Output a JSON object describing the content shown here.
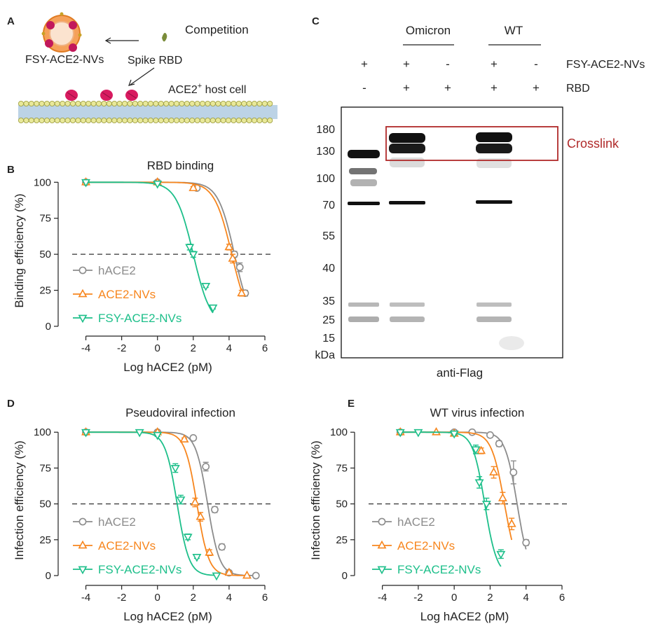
{
  "panel_labels": {
    "a": "A",
    "b": "B",
    "c": "C",
    "d": "D",
    "e": "E"
  },
  "schematic": {
    "title": "Competition",
    "np_label": "FSY-ACE2-NVs",
    "rbd_label": "Spike RBD",
    "host_label": "ACE2",
    "host_sup": "+",
    "host_suffix": " host cell"
  },
  "blot": {
    "groups": [
      "Omicron",
      "WT"
    ],
    "rows": [
      {
        "label": "FSY-ACE2-NVs",
        "signs": [
          "+",
          "+",
          "-",
          "+",
          "-"
        ]
      },
      {
        "label": "RBD",
        "signs": [
          "-",
          "+",
          "+",
          "+",
          "+"
        ]
      }
    ],
    "markers": [
      "180",
      "130",
      "100",
      "70",
      "55",
      "40",
      "35",
      "25",
      "15"
    ],
    "unit": "kDa",
    "crosslink_label": "Crosslink",
    "antibody": "anti-Flag"
  },
  "colors": {
    "hace2": "#8c8c8c",
    "acenv": "#f7861e",
    "fsy": "#1dbf8a",
    "crosslink": "#b02a2a"
  },
  "chart_data": [
    {
      "id": "B",
      "type": "line",
      "title": "RBD binding",
      "xlabel": "Log hACE2 (pM)",
      "ylabel": "Binding efficiency (%)",
      "xlim": [
        -5,
        6
      ],
      "ylim": [
        0,
        105
      ],
      "xticks": [
        -4,
        -2,
        0,
        2,
        4,
        6
      ],
      "yticks": [
        0,
        25,
        50,
        75,
        100
      ],
      "ref_line_y": 50,
      "legend": "bottom-left",
      "series": [
        {
          "name": "hACE2",
          "color": "#8c8c8c",
          "marker": "circle",
          "ic50": 4.3,
          "hill": 0.95,
          "x": [
            -4,
            0,
            2.2,
            4.3,
            4.6,
            4.9
          ],
          "y": [
            100,
            100,
            96,
            50,
            41,
            23
          ],
          "err": [
            0,
            0,
            1,
            2,
            3,
            2
          ]
        },
        {
          "name": "ACE2-NVs",
          "color": "#f7861e",
          "marker": "triangle-up",
          "ic50": 4.15,
          "hill": 0.9,
          "x": [
            -4,
            0,
            2,
            4,
            4.2,
            4.7
          ],
          "y": [
            100,
            100,
            96,
            55,
            47,
            23
          ],
          "err": [
            0,
            0,
            1,
            2,
            3,
            2
          ]
        },
        {
          "name": "FSY-ACE2-NVs",
          "color": "#1dbf8a",
          "marker": "triangle-down",
          "ic50": 2.0,
          "hill": 0.9,
          "x": [
            -4,
            0,
            1.8,
            2.0,
            2.7,
            3.1
          ],
          "y": [
            100,
            99,
            55,
            50,
            28,
            13
          ],
          "err": [
            0,
            0,
            2,
            2,
            1,
            1
          ]
        }
      ]
    },
    {
      "id": "D",
      "type": "line",
      "title": "Pseudoviral infection",
      "xlabel": "Log hACE2 (pM)",
      "ylabel": "Infection efficiency (%)",
      "xlim": [
        -5,
        6
      ],
      "ylim": [
        0,
        105
      ],
      "xticks": [
        -4,
        -2,
        0,
        2,
        4,
        6
      ],
      "yticks": [
        0,
        25,
        50,
        75,
        100
      ],
      "ref_line_y": 50,
      "legend": "bottom-left",
      "series": [
        {
          "name": "hACE2",
          "color": "#8c8c8c",
          "marker": "circle",
          "ic50": 2.8,
          "hill": 1.3,
          "x": [
            -4,
            0,
            2,
            2.7,
            3.2,
            3.6,
            4,
            5.5
          ],
          "y": [
            100,
            100,
            96,
            76,
            46,
            20,
            2,
            0
          ],
          "err": [
            0,
            0,
            1,
            3,
            2,
            2,
            1,
            0
          ]
        },
        {
          "name": "ACE2-NVs",
          "color": "#f7861e",
          "marker": "triangle-up",
          "ic50": 2.2,
          "hill": 1.3,
          "x": [
            -4,
            0,
            1.5,
            2.1,
            2.4,
            2.9,
            4,
            5
          ],
          "y": [
            100,
            100,
            95,
            51,
            41,
            16,
            2,
            0
          ],
          "err": [
            0,
            0,
            1,
            3,
            3,
            2,
            1,
            0
          ]
        },
        {
          "name": "FSY-ACE2-NVs",
          "color": "#1dbf8a",
          "marker": "triangle-down",
          "ic50": 1.1,
          "hill": 1.3,
          "x": [
            -4,
            -1,
            0,
            1,
            1.3,
            1.7,
            2.2,
            3.3
          ],
          "y": [
            100,
            100,
            98,
            75,
            53,
            27,
            13,
            0
          ],
          "err": [
            0,
            0,
            1,
            3,
            3,
            2,
            1,
            0
          ]
        }
      ]
    },
    {
      "id": "E",
      "type": "line",
      "title": "WT virus infection",
      "xlabel": "Log hACE2 (pM)",
      "ylabel": "Infection efficiency (%)",
      "xlim": [
        -5,
        6
      ],
      "ylim": [
        0,
        105
      ],
      "xticks": [
        -4,
        -2,
        0,
        2,
        4,
        6
      ],
      "yticks": [
        0,
        25,
        50,
        75,
        100
      ],
      "ref_line_y": 50,
      "legend": "bottom-left",
      "series": [
        {
          "name": "hACE2",
          "color": "#8c8c8c",
          "marker": "circle",
          "ic50": 3.5,
          "hill": 1.3,
          "x": [
            -3,
            0,
            1,
            2,
            2.5,
            3.3,
            4
          ],
          "y": [
            100,
            100,
            100,
            98,
            92,
            72,
            23
          ],
          "err": [
            0,
            0,
            0,
            1,
            2,
            8,
            2
          ]
        },
        {
          "name": "ACE2-NVs",
          "color": "#f7861e",
          "marker": "triangle-up",
          "ic50": 2.8,
          "hill": 1.2,
          "x": [
            -3,
            -1,
            0,
            1.5,
            2.2,
            2.7,
            3.2
          ],
          "y": [
            100,
            100,
            99,
            87,
            72,
            54,
            36
          ],
          "err": [
            0,
            0,
            1,
            2,
            4,
            4,
            4
          ]
        },
        {
          "name": "FSY-ACE2-NVs",
          "color": "#1dbf8a",
          "marker": "triangle-down",
          "ic50": 1.7,
          "hill": 1.3,
          "x": [
            -3,
            -2,
            0,
            1.2,
            1.4,
            1.8,
            2.6
          ],
          "y": [
            100,
            100,
            99,
            88,
            65,
            50,
            15
          ],
          "err": [
            0,
            0,
            1,
            3,
            4,
            4,
            3
          ]
        }
      ]
    }
  ]
}
